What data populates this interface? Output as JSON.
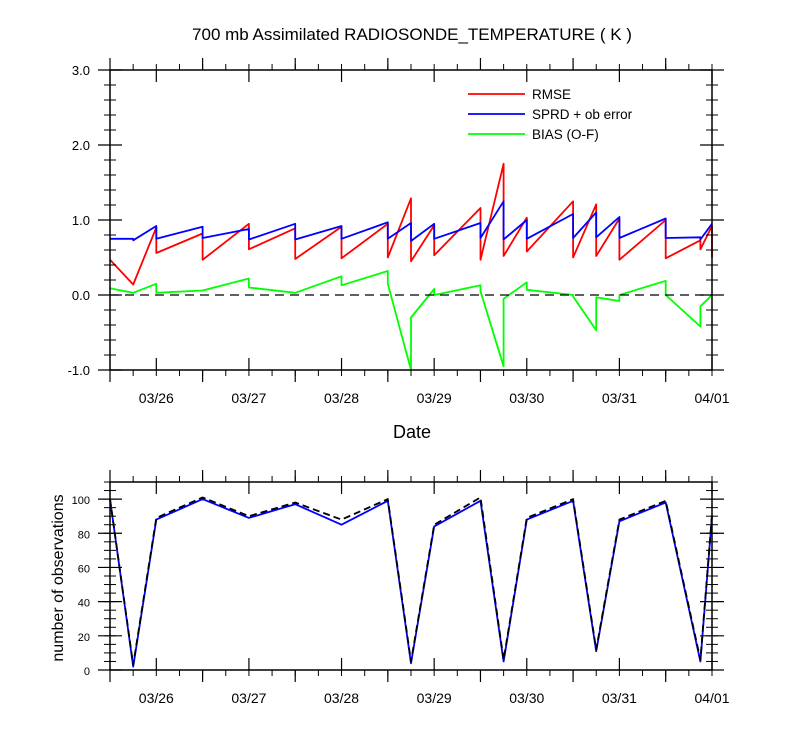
{
  "chart_data": [
    {
      "type": "line",
      "title": "700 mb Assimilated RADIOSONDE_TEMPERATURE ( K )",
      "xlabel": "Date",
      "ylabel": "",
      "xlim": [
        "03/25 12Z",
        "04/01 00Z"
      ],
      "ylim": [
        -1.0,
        3.0
      ],
      "x_ticks": [
        "03/26",
        "03/27",
        "03/28",
        "03/29",
        "03/30",
        "03/31",
        "04/01"
      ],
      "y_ticks": [
        "-1.0",
        "0.0",
        "1.0",
        "2.0",
        "3.0"
      ],
      "zero_line": true,
      "legend_position": "top-right",
      "series": [
        {
          "name": "RMSE",
          "color": "#ff0000",
          "x": [
            "03/25 12Z",
            "03/25 18Z",
            "03/26 00Z",
            "03/26 00Z",
            "03/26 12Z",
            "03/26 12Z",
            "03/27 00Z",
            "03/27 00Z",
            "03/27 12Z",
            "03/27 12Z",
            "03/28 00Z",
            "03/28 00Z",
            "03/28 12Z",
            "03/28 12Z",
            "03/28 18Z",
            "03/28 18Z",
            "03/29 00Z",
            "03/29 00Z",
            "03/29 12Z",
            "03/29 12Z",
            "03/29 18Z",
            "03/29 18Z",
            "03/30 00Z",
            "03/30 00Z",
            "03/30 12Z",
            "03/30 12Z",
            "03/30 18Z",
            "03/30 18Z",
            "03/31 00Z",
            "03/31 00Z",
            "03/31 12Z",
            "03/31 12Z",
            "03/31 21Z",
            "03/31 21Z",
            "04/01 00Z",
            "04/01 00Z"
          ],
          "y": [
            0.47,
            0.14,
            0.9,
            0.56,
            0.82,
            0.47,
            0.95,
            0.61,
            0.89,
            0.48,
            0.91,
            0.49,
            0.95,
            0.5,
            1.29,
            0.45,
            0.93,
            0.53,
            1.16,
            0.47,
            1.75,
            0.52,
            1.03,
            0.58,
            1.25,
            0.5,
            1.21,
            0.52,
            1.02,
            0.47,
            1.0,
            0.49,
            0.73,
            0.61,
            0.92,
            0.5
          ]
        },
        {
          "name": "SPRD + ob error",
          "color": "#0000ff",
          "x": [
            "03/25 12Z",
            "03/25 18Z",
            "03/25 18Z",
            "03/26 00Z",
            "03/26 00Z",
            "03/26 12Z",
            "03/26 12Z",
            "03/27 00Z",
            "03/27 00Z",
            "03/27 12Z",
            "03/27 12Z",
            "03/28 00Z",
            "03/28 00Z",
            "03/28 12Z",
            "03/28 12Z",
            "03/28 18Z",
            "03/28 18Z",
            "03/29 00Z",
            "03/29 00Z",
            "03/29 12Z",
            "03/29 12Z",
            "03/29 18Z",
            "03/29 18Z",
            "03/30 00Z",
            "03/30 00Z",
            "03/30 12Z",
            "03/30 12Z",
            "03/30 18Z",
            "03/30 18Z",
            "03/31 00Z",
            "03/31 00Z",
            "03/31 12Z",
            "03/31 12Z",
            "03/31 21Z",
            "03/31 21Z",
            "04/01 00Z"
          ],
          "y": [
            0.75,
            0.75,
            0.73,
            0.92,
            0.75,
            0.91,
            0.76,
            0.88,
            0.74,
            0.95,
            0.74,
            0.92,
            0.75,
            0.97,
            0.75,
            0.96,
            0.72,
            0.95,
            0.75,
            0.96,
            0.76,
            1.25,
            0.74,
            1.0,
            0.75,
            1.08,
            0.76,
            1.1,
            0.77,
            1.04,
            0.76,
            1.02,
            0.76,
            0.77,
            0.74,
            0.95
          ]
        },
        {
          "name": "BIAS (O-F)",
          "color": "#00ff00",
          "x": [
            "03/25 12Z",
            "03/25 18Z",
            "03/26 00Z",
            "03/26 00Z",
            "03/26 12Z",
            "03/27 00Z",
            "03/27 00Z",
            "03/27 12Z",
            "03/28 00Z",
            "03/28 00Z",
            "03/28 12Z",
            "03/28 12Z",
            "03/28 18Z",
            "03/28 18Z",
            "03/29 00Z",
            "03/29 00Z",
            "03/29 12Z",
            "03/29 12Z",
            "03/29 18Z",
            "03/29 18Z",
            "03/30 00Z",
            "03/30 00Z",
            "03/30 12Z",
            "03/30 12Z",
            "03/30 18Z",
            "03/30 18Z",
            "03/31 00Z",
            "03/31 00Z",
            "03/31 12Z",
            "03/31 12Z",
            "03/31 21Z",
            "03/31 21Z",
            "04/01 00Z"
          ],
          "y": [
            0.09,
            0.03,
            0.15,
            0.03,
            0.06,
            0.22,
            0.1,
            0.03,
            0.25,
            0.13,
            0.32,
            0.15,
            -1.0,
            -0.3,
            0.08,
            0.0,
            0.13,
            0.05,
            -0.95,
            -0.05,
            0.17,
            0.07,
            0.0,
            -0.02,
            -0.47,
            -0.03,
            -0.08,
            0.0,
            0.19,
            0.0,
            -0.42,
            -0.15,
            0.0
          ]
        }
      ]
    },
    {
      "type": "line",
      "title": "",
      "xlabel": "",
      "ylabel": "number of observations",
      "xlim": [
        "03/25 12Z",
        "04/01 00Z"
      ],
      "ylim": [
        0,
        110
      ],
      "x_ticks": [
        "03/26",
        "03/27",
        "03/28",
        "03/29",
        "03/30",
        "03/31",
        "04/01"
      ],
      "y_ticks": [
        "0",
        "20",
        "40",
        "60",
        "80",
        "100"
      ],
      "series": [
        {
          "color": "#0000ff",
          "x": [
            "03/25 12Z",
            "03/25 18Z",
            "03/26 00Z",
            "03/26 12Z",
            "03/27 00Z",
            "03/27 12Z",
            "03/28 00Z",
            "03/28 12Z",
            "03/28 18Z",
            "03/29 00Z",
            "03/29 12Z",
            "03/29 18Z",
            "03/30 00Z",
            "03/30 12Z",
            "03/30 18Z",
            "03/31 00Z",
            "03/31 12Z",
            "03/31 21Z",
            "04/01 00Z"
          ],
          "y": [
            100,
            2,
            88,
            100,
            89,
            97,
            85,
            99,
            4,
            84,
            99,
            5,
            88,
            99,
            11,
            87,
            98,
            5,
            90
          ]
        },
        {
          "color": "#000000",
          "dashed": true,
          "x": [
            "03/25 12Z",
            "03/25 18Z",
            "03/26 00Z",
            "03/26 12Z",
            "03/27 00Z",
            "03/27 12Z",
            "03/28 00Z",
            "03/28 12Z",
            "03/28 18Z",
            "03/29 00Z",
            "03/29 12Z",
            "03/29 18Z",
            "03/30 00Z",
            "03/30 12Z",
            "03/30 18Z",
            "03/31 00Z",
            "03/31 12Z",
            "03/31 21Z",
            "04/01 00Z"
          ],
          "y": [
            100,
            3,
            89,
            101,
            90,
            98,
            88,
            100,
            5,
            85,
            101,
            6,
            89,
            100,
            12,
            88,
            99,
            6,
            91
          ]
        }
      ]
    }
  ]
}
